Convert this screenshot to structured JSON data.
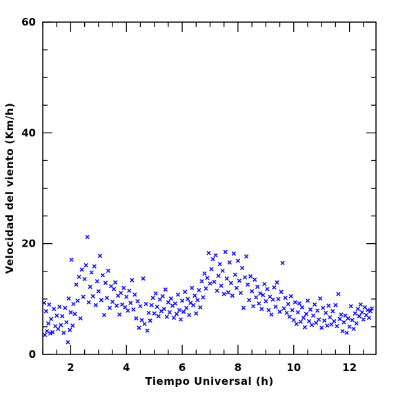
{
  "chart_data": {
    "type": "scatter",
    "title": "",
    "xlabel": "Tiempo Universal (h)",
    "ylabel": "Velocidad del viento (Km/h)",
    "xlim": [
      1,
      12.95
    ],
    "ylim": [
      0,
      60
    ],
    "x_ticks": [
      2,
      4,
      6,
      8,
      10,
      12
    ],
    "y_ticks": [
      0,
      20,
      40,
      60
    ],
    "marker": "x",
    "grid": false,
    "legend": "none",
    "colors": {
      "points": "#1010ee",
      "axes": "#000000"
    },
    "series": [
      {
        "points": [
          [
            1.05,
            9.3
          ],
          [
            1.08,
            3.5
          ],
          [
            1.12,
            7.8
          ],
          [
            1.15,
            4.2
          ],
          [
            1.2,
            5.6
          ],
          [
            1.23,
            9.0
          ],
          [
            1.27,
            3.8
          ],
          [
            1.3,
            6.4
          ],
          [
            1.35,
            4.0
          ],
          [
            1.4,
            8.2
          ],
          [
            1.45,
            5.1
          ],
          [
            1.5,
            7.0
          ],
          [
            1.55,
            4.6
          ],
          [
            1.6,
            8.6
          ],
          [
            1.65,
            5.3
          ],
          [
            1.7,
            6.9
          ],
          [
            1.75,
            3.9
          ],
          [
            1.8,
            8.4
          ],
          [
            1.85,
            5.8
          ],
          [
            1.9,
            2.2
          ],
          [
            1.93,
            10.1
          ],
          [
            1.97,
            4.4
          ],
          [
            2.0,
            7.6
          ],
          [
            2.03,
            17.1
          ],
          [
            2.07,
            5.2
          ],
          [
            2.1,
            9.1
          ],
          [
            2.15,
            7.3
          ],
          [
            2.2,
            12.6
          ],
          [
            2.25,
            9.7
          ],
          [
            2.3,
            14.0
          ],
          [
            2.35,
            6.5
          ],
          [
            2.4,
            15.3
          ],
          [
            2.45,
            10.4
          ],
          [
            2.5,
            13.6
          ],
          [
            2.55,
            16.1
          ],
          [
            2.6,
            21.2
          ],
          [
            2.65,
            9.4
          ],
          [
            2.7,
            12.2
          ],
          [
            2.75,
            14.8
          ],
          [
            2.8,
            10.5
          ],
          [
            2.85,
            15.9
          ],
          [
            2.9,
            8.9
          ],
          [
            2.95,
            13.2
          ],
          [
            3.0,
            11.4
          ],
          [
            3.05,
            17.8
          ],
          [
            3.1,
            9.8
          ],
          [
            3.15,
            14.3
          ],
          [
            3.2,
            7.1
          ],
          [
            3.25,
            12.9
          ],
          [
            3.3,
            10.2
          ],
          [
            3.35,
            15.1
          ],
          [
            3.4,
            8.4
          ],
          [
            3.45,
            12.3
          ],
          [
            3.5,
            9.5
          ],
          [
            3.55,
            11.8
          ],
          [
            3.6,
            13.0
          ],
          [
            3.65,
            8.8
          ],
          [
            3.7,
            10.6
          ],
          [
            3.75,
            7.2
          ],
          [
            3.8,
            11.1
          ],
          [
            3.85,
            9.0
          ],
          [
            3.9,
            12.0
          ],
          [
            3.95,
            8.5
          ],
          [
            4.0,
            10.4
          ],
          [
            4.05,
            7.9
          ],
          [
            4.1,
            11.5
          ],
          [
            4.15,
            9.3
          ],
          [
            4.2,
            13.4
          ],
          [
            4.25,
            8.1
          ],
          [
            4.3,
            10.8
          ],
          [
            4.35,
            6.5
          ],
          [
            4.4,
            9.6
          ],
          [
            4.45,
            4.8
          ],
          [
            4.5,
            8.7
          ],
          [
            4.55,
            6.2
          ],
          [
            4.6,
            13.7
          ],
          [
            4.65,
            5.5
          ],
          [
            4.7,
            9.1
          ],
          [
            4.75,
            4.3
          ],
          [
            4.8,
            7.5
          ],
          [
            4.85,
            6.1
          ],
          [
            4.9,
            8.9
          ],
          [
            4.95,
            10.2
          ],
          [
            5.0,
            7.4
          ],
          [
            5.05,
            11.0
          ],
          [
            5.1,
            8.6
          ],
          [
            5.15,
            6.9
          ],
          [
            5.2,
            9.9
          ],
          [
            5.25,
            7.8
          ],
          [
            5.3,
            10.5
          ],
          [
            5.35,
            8.2
          ],
          [
            5.4,
            11.7
          ],
          [
            5.45,
            6.8
          ],
          [
            5.5,
            9.4
          ],
          [
            5.55,
            7.6
          ],
          [
            5.6,
            10.1
          ],
          [
            5.65,
            8.8
          ],
          [
            5.7,
            6.6
          ],
          [
            5.75,
            9.2
          ],
          [
            5.8,
            7.3
          ],
          [
            5.85,
            10.8
          ],
          [
            5.9,
            8.0
          ],
          [
            5.95,
            6.3
          ],
          [
            6.0,
            9.7
          ],
          [
            6.05,
            7.7
          ],
          [
            6.1,
            11.3
          ],
          [
            6.15,
            8.4
          ],
          [
            6.2,
            10.0
          ],
          [
            6.25,
            7.1
          ],
          [
            6.3,
            9.3
          ],
          [
            6.35,
            12.0
          ],
          [
            6.4,
            8.9
          ],
          [
            6.45,
            10.6
          ],
          [
            6.5,
            7.4
          ],
          [
            6.55,
            9.8
          ],
          [
            6.6,
            11.6
          ],
          [
            6.65,
            8.5
          ],
          [
            6.7,
            13.2
          ],
          [
            6.75,
            10.3
          ],
          [
            6.8,
            14.6
          ],
          [
            6.85,
            11.9
          ],
          [
            6.9,
            13.8
          ],
          [
            6.95,
            18.3
          ],
          [
            7.0,
            12.8
          ],
          [
            7.05,
            15.4
          ],
          [
            7.1,
            17.2
          ],
          [
            7.15,
            13.1
          ],
          [
            7.2,
            17.9
          ],
          [
            7.25,
            11.5
          ],
          [
            7.3,
            14.2
          ],
          [
            7.35,
            16.3
          ],
          [
            7.4,
            12.4
          ],
          [
            7.45,
            15.1
          ],
          [
            7.5,
            10.9
          ],
          [
            7.55,
            18.5
          ],
          [
            7.6,
            13.7
          ],
          [
            7.65,
            11.2
          ],
          [
            7.7,
            16.6
          ],
          [
            7.75,
            12.9
          ],
          [
            7.8,
            10.6
          ],
          [
            7.85,
            18.2
          ],
          [
            7.9,
            14.4
          ],
          [
            7.95,
            12.0
          ],
          [
            8.0,
            16.9
          ],
          [
            8.05,
            13.3
          ],
          [
            8.1,
            11.1
          ],
          [
            8.15,
            15.6
          ],
          [
            8.2,
            8.4
          ],
          [
            8.25,
            13.9
          ],
          [
            8.3,
            17.7
          ],
          [
            8.35,
            12.6
          ],
          [
            8.4,
            9.8
          ],
          [
            8.45,
            14.1
          ],
          [
            8.5,
            11.4
          ],
          [
            8.55,
            8.7
          ],
          [
            8.6,
            13.5
          ],
          [
            8.65,
            10.3
          ],
          [
            8.7,
            12.2
          ],
          [
            8.75,
            9.2
          ],
          [
            8.8,
            11.0
          ],
          [
            8.85,
            8.2
          ],
          [
            8.9,
            10.7
          ],
          [
            8.95,
            12.7
          ],
          [
            9.0,
            9.6
          ],
          [
            9.05,
            11.8
          ],
          [
            9.1,
            8.0
          ],
          [
            9.15,
            10.4
          ],
          [
            9.2,
            7.2
          ],
          [
            9.25,
            9.9
          ],
          [
            9.3,
            12.1
          ],
          [
            9.35,
            8.6
          ],
          [
            9.4,
            13.0
          ],
          [
            9.45,
            10.0
          ],
          [
            9.5,
            7.7
          ],
          [
            9.55,
            11.3
          ],
          [
            9.6,
            16.5
          ],
          [
            9.65,
            8.3
          ],
          [
            9.7,
            10.2
          ],
          [
            9.75,
            7.5
          ],
          [
            9.8,
            9.1
          ],
          [
            9.85,
            6.8
          ],
          [
            9.9,
            10.5
          ],
          [
            9.95,
            8.0
          ],
          [
            10.0,
            6.2
          ],
          [
            10.05,
            9.4
          ],
          [
            10.1,
            5.5
          ],
          [
            10.15,
            7.6
          ],
          [
            10.2,
            9.2
          ],
          [
            10.25,
            5.9
          ],
          [
            10.3,
            8.5
          ],
          [
            10.35,
            6.6
          ],
          [
            10.4,
            4.9
          ],
          [
            10.45,
            7.3
          ],
          [
            10.5,
            9.7
          ],
          [
            10.55,
            6.0
          ],
          [
            10.6,
            8.1
          ],
          [
            10.65,
            5.3
          ],
          [
            10.7,
            7.0
          ],
          [
            10.75,
            9.0
          ],
          [
            10.8,
            5.7
          ],
          [
            10.85,
            7.9
          ],
          [
            10.9,
            6.3
          ],
          [
            10.95,
            10.1
          ],
          [
            11.0,
            4.8
          ],
          [
            11.05,
            8.4
          ],
          [
            11.1,
            6.1
          ],
          [
            11.15,
            7.5
          ],
          [
            11.2,
            5.2
          ],
          [
            11.25,
            8.8
          ],
          [
            11.3,
            6.7
          ],
          [
            11.35,
            5.4
          ],
          [
            11.4,
            7.8
          ],
          [
            11.45,
            6.0
          ],
          [
            11.5,
            8.9
          ],
          [
            11.55,
            5.1
          ],
          [
            11.6,
            10.9
          ],
          [
            11.65,
            6.4
          ],
          [
            11.7,
            7.2
          ],
          [
            11.75,
            4.2
          ],
          [
            11.8,
            5.8
          ],
          [
            11.85,
            7.0
          ],
          [
            11.9,
            3.9
          ],
          [
            11.95,
            6.5
          ],
          [
            12.0,
            5.0
          ],
          [
            12.05,
            8.7
          ],
          [
            12.1,
            6.2
          ],
          [
            12.15,
            4.6
          ],
          [
            12.2,
            7.4
          ],
          [
            12.25,
            5.6
          ],
          [
            12.3,
            8.2
          ],
          [
            12.35,
            6.9
          ],
          [
            12.4,
            9.0
          ],
          [
            12.45,
            7.6
          ],
          [
            12.5,
            6.3
          ],
          [
            12.55,
            8.5
          ],
          [
            12.6,
            7.1
          ],
          [
            12.65,
            8.0
          ],
          [
            12.7,
            6.6
          ],
          [
            12.75,
            7.8
          ],
          [
            12.8,
            8.3
          ]
        ]
      }
    ]
  }
}
